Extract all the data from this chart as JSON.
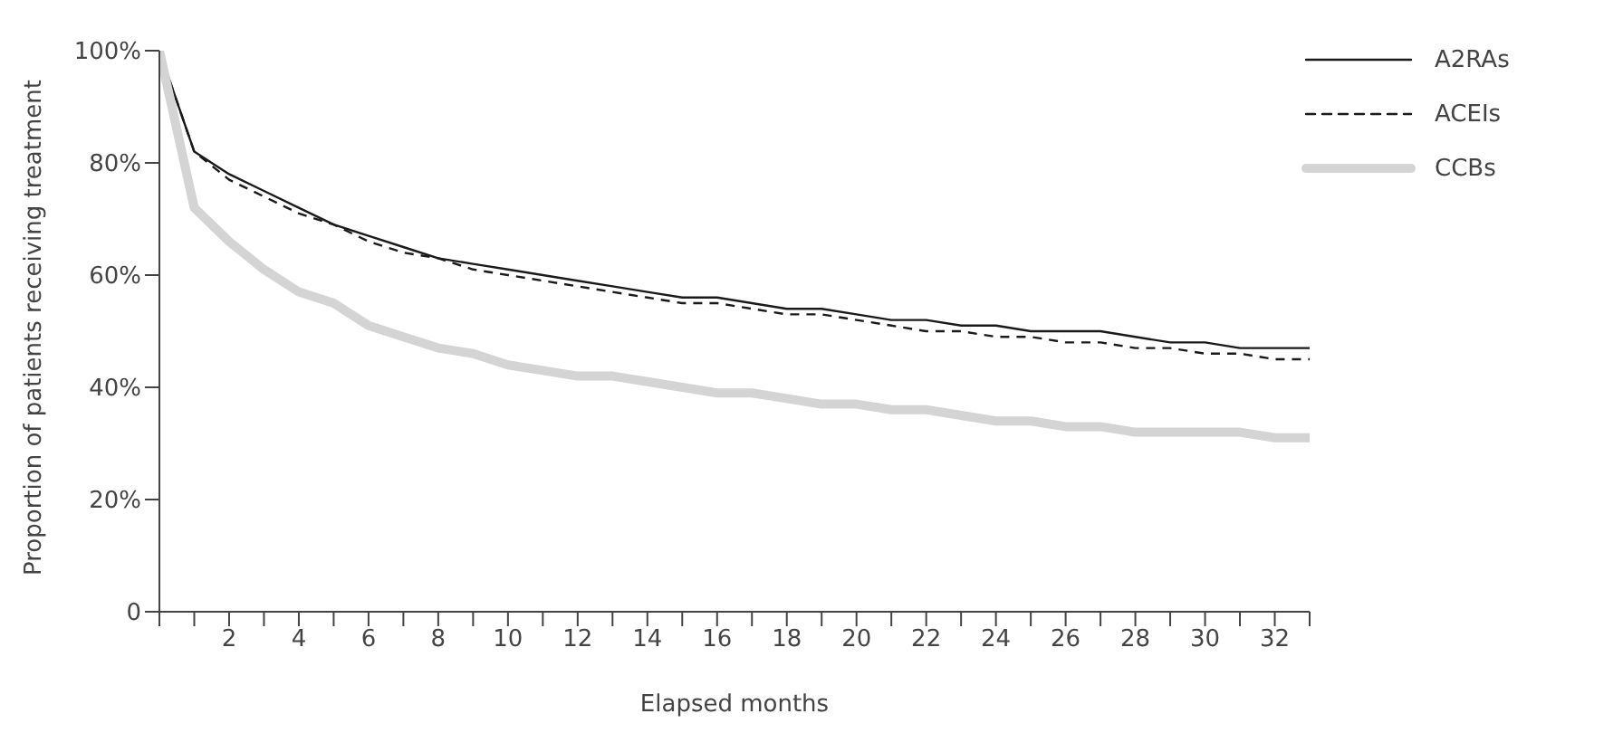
{
  "chart_data": {
    "type": "line",
    "xlabel": "Elapsed months",
    "ylabel": "Proportion of patients receiving treatment",
    "x": [
      0,
      1,
      2,
      3,
      4,
      5,
      6,
      7,
      8,
      9,
      10,
      11,
      12,
      13,
      14,
      15,
      16,
      17,
      18,
      19,
      20,
      21,
      22,
      23,
      24,
      25,
      26,
      27,
      28,
      29,
      30,
      31,
      32,
      33
    ],
    "series": [
      {
        "name": "A2RAs",
        "color": "#1a1a1a",
        "line_style": "solid",
        "values": [
          100,
          82,
          78,
          75,
          72,
          69,
          67,
          65,
          63,
          62,
          61,
          60,
          59,
          58,
          57,
          56,
          56,
          55,
          54,
          54,
          53,
          52,
          52,
          51,
          51,
          50,
          50,
          50,
          49,
          48,
          48,
          47,
          47,
          47
        ]
      },
      {
        "name": "ACEIs",
        "color": "#1a1a1a",
        "line_style": "dashed",
        "values": [
          100,
          82,
          77,
          74,
          71,
          69,
          66,
          64,
          63,
          61,
          60,
          59,
          58,
          57,
          56,
          55,
          55,
          54,
          53,
          53,
          52,
          51,
          50,
          50,
          49,
          49,
          48,
          48,
          47,
          47,
          46,
          46,
          45,
          45
        ]
      },
      {
        "name": "CCBs",
        "color": "#d4d4d4",
        "line_style": "solid",
        "values": [
          100,
          72,
          66,
          61,
          57,
          55,
          51,
          49,
          47,
          46,
          44,
          43,
          42,
          42,
          41,
          40,
          39,
          39,
          38,
          37,
          37,
          36,
          36,
          35,
          34,
          34,
          33,
          33,
          32,
          32,
          32,
          32,
          31,
          31
        ]
      }
    ],
    "xlim": [
      0,
      33
    ],
    "xticks": [
      {
        "value": 0,
        "label": null
      },
      {
        "value": 1,
        "label": null
      },
      2,
      {
        "value": 3,
        "label": null
      },
      4,
      {
        "value": 5,
        "label": null
      },
      6,
      {
        "value": 7,
        "label": null
      },
      8,
      {
        "value": 9,
        "label": null
      },
      10,
      {
        "value": 11,
        "label": null
      },
      12,
      {
        "value": 13,
        "label": null
      },
      14,
      {
        "value": 15,
        "label": null
      },
      16,
      {
        "value": 17,
        "label": null
      },
      18,
      {
        "value": 19,
        "label": null
      },
      20,
      {
        "value": 21,
        "label": null
      },
      22,
      {
        "value": 23,
        "label": null
      },
      24,
      {
        "value": 25,
        "label": null
      },
      26,
      {
        "value": 27,
        "label": null
      },
      28,
      {
        "value": 29,
        "label": null
      },
      30,
      {
        "value": 31,
        "label": null
      },
      32,
      {
        "value": 33,
        "label": null
      }
    ],
    "ylim": [
      0,
      100
    ],
    "yticks": [
      0,
      {
        "value": 20,
        "label": "20%"
      },
      {
        "value": 40,
        "label": "40%"
      },
      {
        "value": 60,
        "label": "60%"
      },
      {
        "value": 80,
        "label": "80%"
      },
      {
        "value": 100,
        "label": "100%"
      }
    ],
    "legend": "top right",
    "grid": false,
    "marker": "none"
  }
}
